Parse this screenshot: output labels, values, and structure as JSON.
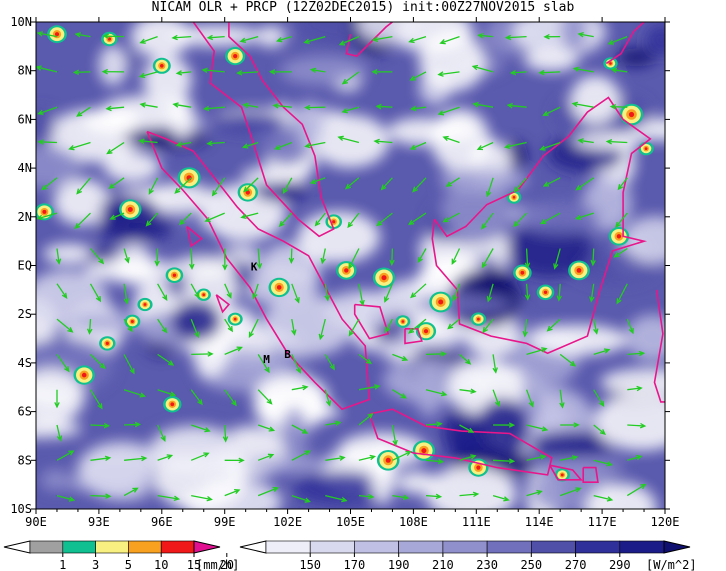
{
  "title": "NICAM OLR + PRCP (12Z02DEC2015) init:00Z27NOV2015 slab",
  "map": {
    "lon_range": [
      90,
      120
    ],
    "lat_range": [
      -10,
      10
    ],
    "lon_ticks": [
      "90E",
      "93E",
      "96E",
      "99E",
      "102E",
      "105E",
      "108E",
      "111E",
      "114E",
      "117E",
      "120E"
    ],
    "lat_ticks": [
      "10N",
      "8N",
      "6N",
      "4N",
      "2N",
      "EQ",
      "2S",
      "4S",
      "6S",
      "8S",
      "10S"
    ],
    "markers": [
      {
        "label": "K",
        "lon": 100.4,
        "lat": -0.2
      },
      {
        "label": "M",
        "lon": 101.0,
        "lat": -4.0
      },
      {
        "label": "B",
        "lon": 102.0,
        "lat": -3.8
      }
    ],
    "coast_color": "#e8168a",
    "arrow_color": "#22cc22"
  },
  "precip_colorbar": {
    "labels": [
      "1",
      "3",
      "5",
      "10",
      "15",
      "20"
    ],
    "unit": "[mm/h]",
    "colors": [
      "#ffffff",
      "#a0a0a0",
      "#10c090",
      "#f8f080",
      "#f8a020",
      "#f01818",
      "#e01090"
    ]
  },
  "olr_colorbar": {
    "labels": [
      "150",
      "170",
      "190",
      "210",
      "230",
      "250",
      "270",
      "290"
    ],
    "unit": "[W/m^2]",
    "colors": [
      "#ffffff",
      "#eeeef8",
      "#d8d8ee",
      "#c0c0e4",
      "#a8a8d8",
      "#9090cc",
      "#7070bc",
      "#5050a8",
      "#30309a",
      "#1c1c88",
      "#101070"
    ]
  }
}
